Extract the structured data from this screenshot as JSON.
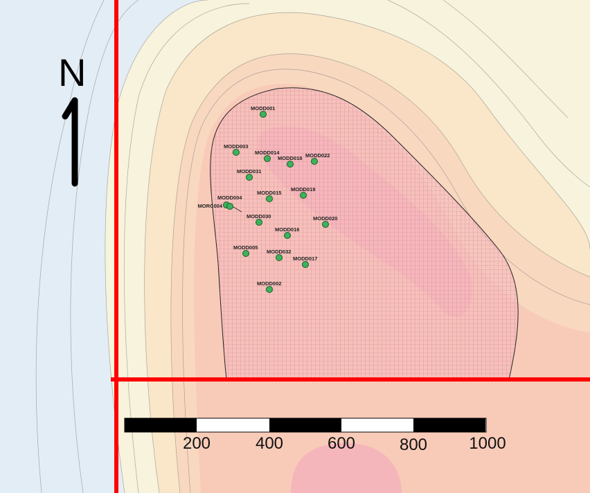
{
  "north_arrow": {
    "label": "N"
  },
  "drillholes": [
    {
      "id": "MODD001"
    },
    {
      "id": "MODD003"
    },
    {
      "id": "MODD014"
    },
    {
      "id": "MODD018"
    },
    {
      "id": "MODD022"
    },
    {
      "id": "MODD031"
    },
    {
      "id": "MODD015"
    },
    {
      "id": "MODD019"
    },
    {
      "id": "MORC004"
    },
    {
      "id": "MODD004"
    },
    {
      "id": "MODD030"
    },
    {
      "id": "MODD020"
    },
    {
      "id": "MODD016"
    },
    {
      "id": "MODD005"
    },
    {
      "id": "MODD032"
    },
    {
      "id": "MODD017"
    },
    {
      "id": "MODD002"
    }
  ],
  "scale_bar": {
    "labels": [
      "200",
      "400",
      "600",
      "800",
      "1000"
    ]
  },
  "colors": {
    "grid_line": "#ff0000",
    "hole_fill": "#3cb35a",
    "anomaly": "#f5b8bd"
  }
}
